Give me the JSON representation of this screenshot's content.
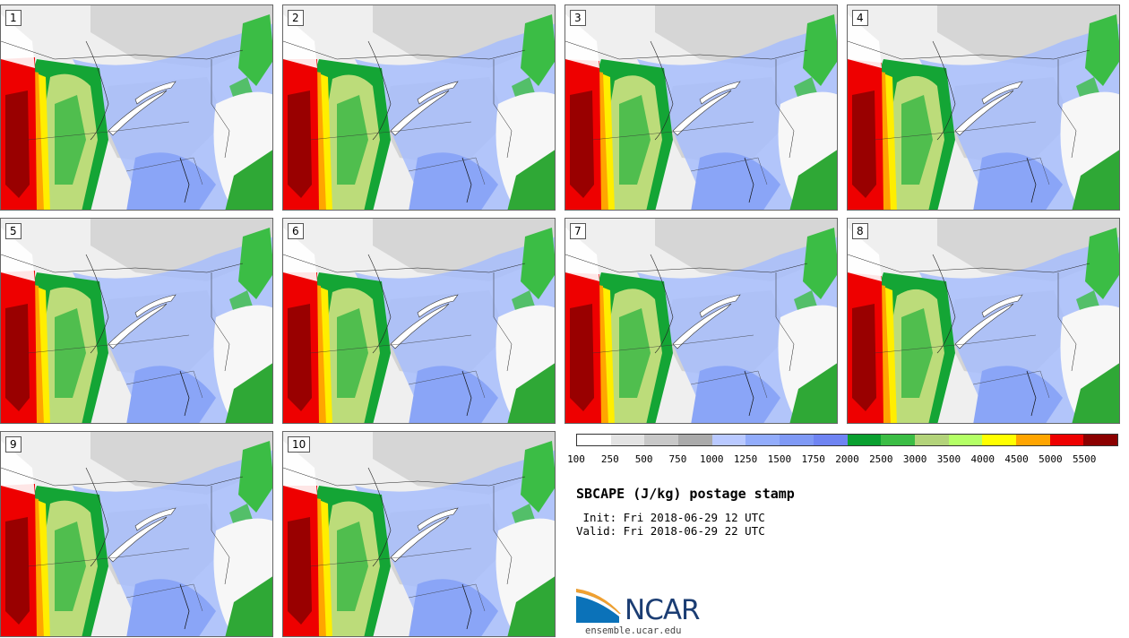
{
  "panels": [
    "1",
    "2",
    "3",
    "4",
    "5",
    "6",
    "7",
    "8",
    "9",
    "10"
  ],
  "colorbar": {
    "colors": [
      "#ffffff",
      "#e3e3e3",
      "#c8c8c8",
      "#aaaaaa",
      "#b9c9ff",
      "#92acfb",
      "#7f99f5",
      "#6f84f2",
      "#0aa030",
      "#3bbd45",
      "#b3d37a",
      "#b4ff66",
      "#ffff00",
      "#ffa500",
      "#ee0000",
      "#8b0000"
    ],
    "ticks": [
      "100",
      "250",
      "500",
      "750",
      "1000",
      "1250",
      "1500",
      "1750",
      "2000",
      "2500",
      "3000",
      "3500",
      "4000",
      "4500",
      "5000",
      "5500"
    ]
  },
  "title": "SBCAPE (J/kg) postage stamp",
  "init": " Init: Fri 2018-06-29 12 UTC",
  "valid": "Valid: Fri 2018-06-29 22 UTC",
  "logo": {
    "text": "NCAR",
    "url": "ensemble.ucar.edu"
  }
}
